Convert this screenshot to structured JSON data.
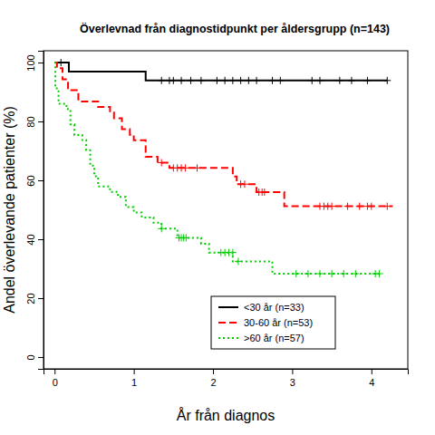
{
  "chart_data": {
    "type": "step",
    "title": "Överlevnad från diagnostidpunkt per åldersgrupp (n=143)",
    "x_label": "År från diagnos",
    "y_label": "Andel överlevande patienter (%)",
    "xlim": [
      -0.14,
      4.46
    ],
    "ylim": [
      -4,
      104
    ],
    "xticks": [
      0,
      1,
      2,
      3,
      4
    ],
    "yticks": [
      0,
      20,
      40,
      60,
      80,
      100
    ],
    "legend": "bottom-right",
    "series": [
      {
        "name": "<30 år (n=33)",
        "color": "#000000",
        "line_style": "solid",
        "x": [
          0,
          0.18,
          1.15,
          4.2
        ],
        "values": [
          100,
          96.9,
          93.9,
          93.9
        ],
        "censor_x": [
          0.08,
          1.35,
          1.45,
          1.5,
          1.6,
          1.72,
          1.85,
          2.05,
          2.15,
          2.25,
          2.35,
          2.45,
          2.55,
          2.75,
          2.85,
          3.25,
          3.35,
          3.6,
          3.75,
          3.95,
          4.2
        ],
        "censor_values": [
          100,
          93.9,
          93.9,
          93.9,
          93.9,
          93.9,
          93.9,
          93.9,
          93.9,
          93.9,
          93.9,
          93.9,
          93.9,
          93.9,
          93.9,
          93.9,
          93.9,
          93.9,
          93.9,
          93.9,
          93.9
        ]
      },
      {
        "name": "30-60 år (n=53)",
        "color": "#ff0000",
        "line_style": "dashed",
        "x": [
          0,
          0.03,
          0.1,
          0.17,
          0.3,
          0.55,
          0.7,
          0.75,
          0.85,
          0.95,
          1.0,
          1.15,
          1.3,
          1.45,
          2.25,
          2.3,
          2.55,
          2.9,
          4.27
        ],
        "values": [
          100,
          98.1,
          94.3,
          90.6,
          86.8,
          84.9,
          83.0,
          81.1,
          77.4,
          75.5,
          73.6,
          68.0,
          66.0,
          64.2,
          61.3,
          58.7,
          56.0,
          51.2,
          51.2
        ],
        "censor_x": [
          1.35,
          1.5,
          1.55,
          1.6,
          1.65,
          1.8,
          2.35,
          2.4,
          2.58,
          2.62,
          2.65,
          3.35,
          3.4,
          3.45,
          3.5,
          3.7,
          3.85,
          3.95,
          4.0,
          4.2
        ],
        "censor_values": [
          66.0,
          64.2,
          64.2,
          64.2,
          64.2,
          64.2,
          58.7,
          58.7,
          56.0,
          56.0,
          56.0,
          51.2,
          51.2,
          51.2,
          51.2,
          51.2,
          51.2,
          51.2,
          51.2,
          51.2
        ]
      },
      {
        "name": ">60 år (n=57)",
        "color": "#00cd00",
        "line_style": "dotted",
        "x": [
          0,
          0.01,
          0.05,
          0.15,
          0.2,
          0.25,
          0.35,
          0.4,
          0.45,
          0.5,
          0.55,
          0.7,
          0.8,
          0.9,
          1.0,
          1.1,
          1.25,
          1.35,
          1.55,
          1.85,
          1.95,
          2.25,
          2.75,
          4.1
        ],
        "values": [
          100,
          91.2,
          86.0,
          84.2,
          79.0,
          75.4,
          73.7,
          70.2,
          65.0,
          61.4,
          57.9,
          56.1,
          54.4,
          50.9,
          49.1,
          47.4,
          45.6,
          43.6,
          40.5,
          38.5,
          35.5,
          32.5,
          28.3,
          28.3
        ],
        "censor_x": [
          1.35,
          1.57,
          1.6,
          1.63,
          1.66,
          2.1,
          2.15,
          2.2,
          2.25,
          2.32,
          3.05,
          3.2,
          3.35,
          3.5,
          3.65,
          3.8,
          4.05,
          4.1
        ],
        "censor_values": [
          43.6,
          40.5,
          40.5,
          40.5,
          40.5,
          35.5,
          35.5,
          35.5,
          35.5,
          32.5,
          28.3,
          28.3,
          28.3,
          28.3,
          28.3,
          28.3,
          28.3,
          28.3
        ]
      }
    ]
  }
}
